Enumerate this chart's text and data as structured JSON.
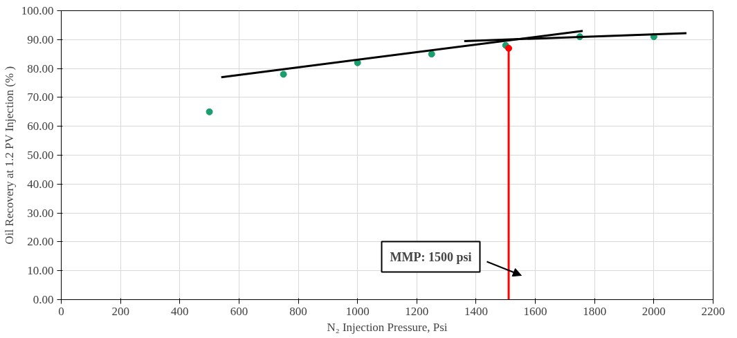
{
  "chart_data": {
    "type": "scatter",
    "xlabel": "N₂ Injection Pressure, Psi",
    "ylabel": "Oil Recovery at 1.2 PV Injection (% )",
    "xlim": [
      0,
      2200
    ],
    "xticks": [
      0,
      200,
      400,
      600,
      800,
      1000,
      1200,
      1400,
      1600,
      1800,
      2000,
      2200
    ],
    "ylim": [
      0,
      100
    ],
    "yticks": [
      {
        "value": 0,
        "label": "0.00"
      },
      {
        "value": 10,
        "label": "10.00"
      },
      {
        "value": 20,
        "label": "20.00"
      },
      {
        "value": 30,
        "label": "30.00"
      },
      {
        "value": 40,
        "label": "40.00"
      },
      {
        "value": 50,
        "label": "50.00"
      },
      {
        "value": 60,
        "label": "60.00"
      },
      {
        "value": 70,
        "label": "70.00"
      },
      {
        "value": 80,
        "label": "80.00"
      },
      {
        "value": 90,
        "label": "90.00"
      },
      {
        "value": 100,
        "label": "100.00"
      }
    ],
    "grid": true,
    "marker": "circle",
    "series": [
      {
        "color": "#1a9e6e",
        "x": [
          500,
          750,
          1000,
          1250,
          1500,
          1750,
          2000
        ],
        "values": [
          65,
          78,
          82,
          85,
          88,
          91,
          91
        ]
      },
      {
        "color": "#ff0000",
        "x": [
          1510
        ],
        "values": [
          87
        ]
      },
      {
        "type": "line",
        "marker": "none",
        "color": "#000000",
        "x": [
          540,
          1760
        ],
        "values": [
          77,
          93
        ]
      },
      {
        "type": "line",
        "marker": "none",
        "color": "#000000",
        "x": [
          1360,
          2110
        ],
        "values": [
          89.5,
          92.2
        ]
      },
      {
        "type": "line",
        "marker": "none",
        "color": "#ff0000",
        "x": [
          1510,
          1510
        ],
        "values": [
          87,
          0
        ]
      }
    ],
    "annotations": [
      "MMP: 1500 psi"
    ]
  }
}
